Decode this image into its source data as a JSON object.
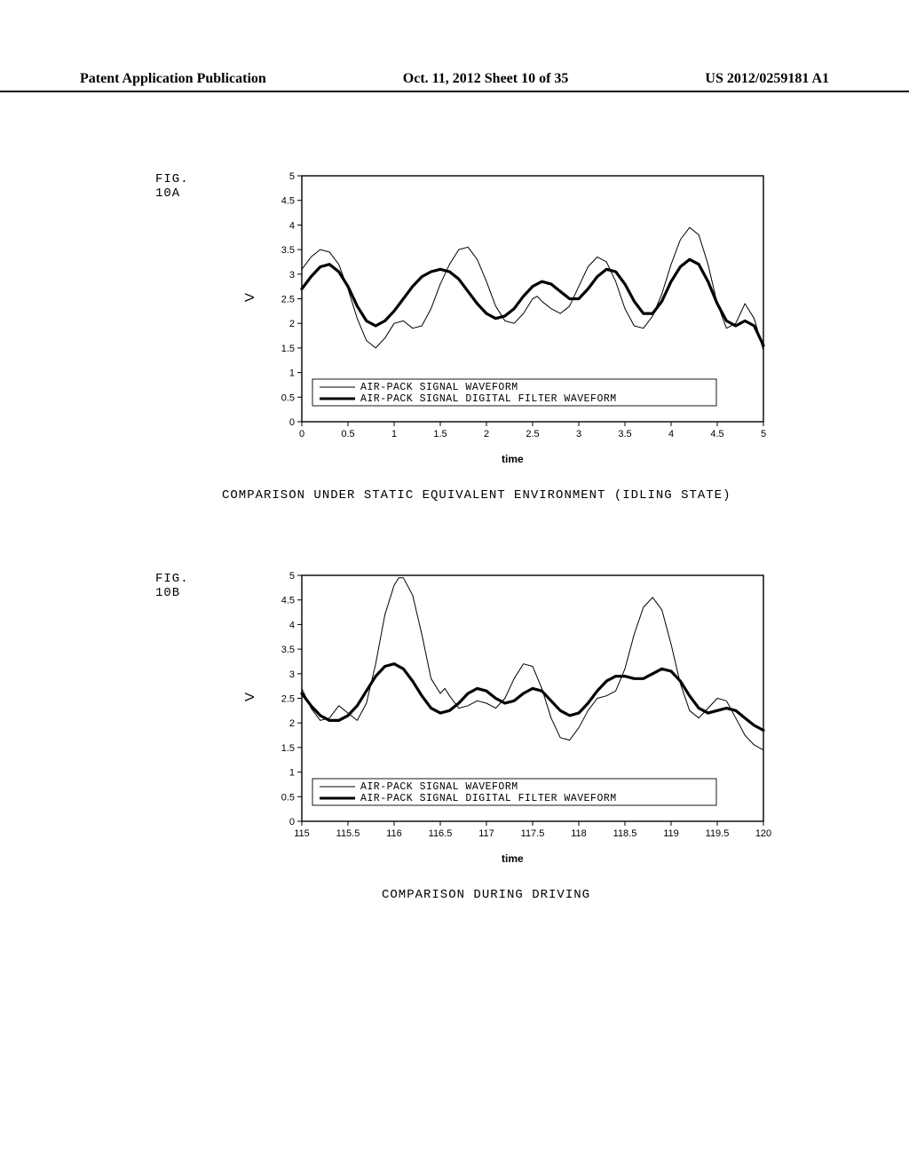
{
  "header": {
    "left": "Patent Application Publication",
    "center": "Oct. 11, 2012  Sheet 10 of 35",
    "right": "US 2012/0259181 A1"
  },
  "figA": {
    "label": "FIG. 10A",
    "type": "line",
    "ylabel": "V",
    "xlabel": "time",
    "xlim": [
      0,
      5
    ],
    "ylim": [
      0,
      5
    ],
    "xticks": [
      0,
      0.5,
      1,
      1.5,
      2,
      2.5,
      3,
      3.5,
      4,
      4.5,
      5
    ],
    "yticks": [
      0,
      0.5,
      1,
      1.5,
      2,
      2.5,
      3,
      3.5,
      4,
      4.5,
      5
    ],
    "legend": [
      "AIR-PACK SIGNAL WAVEFORM",
      "AIR-PACK SIGNAL DIGITAL FILTER WAVEFORM"
    ],
    "legend_line_widths": [
      1,
      3
    ],
    "background_color": "#ffffff",
    "axis_color": "#000000",
    "tick_fontsize": 11,
    "line_color_thin": "#000000",
    "line_color_thick": "#000000",
    "line_width_thin": 1,
    "line_width_thick": 3.2,
    "thin_series": [
      [
        0.0,
        3.1
      ],
      [
        0.1,
        3.35
      ],
      [
        0.2,
        3.5
      ],
      [
        0.3,
        3.45
      ],
      [
        0.4,
        3.2
      ],
      [
        0.5,
        2.7
      ],
      [
        0.6,
        2.1
      ],
      [
        0.7,
        1.65
      ],
      [
        0.8,
        1.5
      ],
      [
        0.9,
        1.7
      ],
      [
        1.0,
        2.0
      ],
      [
        1.1,
        2.05
      ],
      [
        1.2,
        1.9
      ],
      [
        1.3,
        1.95
      ],
      [
        1.4,
        2.3
      ],
      [
        1.5,
        2.8
      ],
      [
        1.6,
        3.2
      ],
      [
        1.7,
        3.5
      ],
      [
        1.8,
        3.55
      ],
      [
        1.9,
        3.3
      ],
      [
        2.0,
        2.85
      ],
      [
        2.1,
        2.35
      ],
      [
        2.2,
        2.05
      ],
      [
        2.3,
        2.0
      ],
      [
        2.4,
        2.2
      ],
      [
        2.5,
        2.5
      ],
      [
        2.55,
        2.55
      ],
      [
        2.6,
        2.45
      ],
      [
        2.7,
        2.3
      ],
      [
        2.8,
        2.2
      ],
      [
        2.9,
        2.35
      ],
      [
        3.0,
        2.75
      ],
      [
        3.1,
        3.15
      ],
      [
        3.2,
        3.35
      ],
      [
        3.3,
        3.25
      ],
      [
        3.4,
        2.85
      ],
      [
        3.5,
        2.3
      ],
      [
        3.6,
        1.95
      ],
      [
        3.7,
        1.9
      ],
      [
        3.8,
        2.15
      ],
      [
        3.9,
        2.6
      ],
      [
        4.0,
        3.2
      ],
      [
        4.1,
        3.7
      ],
      [
        4.2,
        3.95
      ],
      [
        4.3,
        3.8
      ],
      [
        4.4,
        3.2
      ],
      [
        4.5,
        2.4
      ],
      [
        4.6,
        1.9
      ],
      [
        4.7,
        2.0
      ],
      [
        4.8,
        2.4
      ],
      [
        4.9,
        2.1
      ],
      [
        5.0,
        1.45
      ]
    ],
    "thick_series": [
      [
        0.0,
        2.7
      ],
      [
        0.1,
        2.95
      ],
      [
        0.2,
        3.15
      ],
      [
        0.3,
        3.2
      ],
      [
        0.4,
        3.05
      ],
      [
        0.5,
        2.75
      ],
      [
        0.6,
        2.35
      ],
      [
        0.7,
        2.05
      ],
      [
        0.8,
        1.95
      ],
      [
        0.9,
        2.05
      ],
      [
        1.0,
        2.25
      ],
      [
        1.1,
        2.5
      ],
      [
        1.2,
        2.75
      ],
      [
        1.3,
        2.95
      ],
      [
        1.4,
        3.05
      ],
      [
        1.5,
        3.1
      ],
      [
        1.6,
        3.05
      ],
      [
        1.7,
        2.9
      ],
      [
        1.8,
        2.65
      ],
      [
        1.9,
        2.4
      ],
      [
        2.0,
        2.2
      ],
      [
        2.1,
        2.1
      ],
      [
        2.2,
        2.15
      ],
      [
        2.3,
        2.3
      ],
      [
        2.4,
        2.55
      ],
      [
        2.5,
        2.75
      ],
      [
        2.6,
        2.85
      ],
      [
        2.7,
        2.8
      ],
      [
        2.8,
        2.65
      ],
      [
        2.9,
        2.5
      ],
      [
        3.0,
        2.5
      ],
      [
        3.1,
        2.7
      ],
      [
        3.2,
        2.95
      ],
      [
        3.3,
        3.1
      ],
      [
        3.4,
        3.05
      ],
      [
        3.5,
        2.8
      ],
      [
        3.6,
        2.45
      ],
      [
        3.7,
        2.2
      ],
      [
        3.8,
        2.2
      ],
      [
        3.9,
        2.45
      ],
      [
        4.0,
        2.85
      ],
      [
        4.1,
        3.15
      ],
      [
        4.2,
        3.3
      ],
      [
        4.3,
        3.2
      ],
      [
        4.4,
        2.85
      ],
      [
        4.5,
        2.4
      ],
      [
        4.6,
        2.05
      ],
      [
        4.7,
        1.95
      ],
      [
        4.8,
        2.05
      ],
      [
        4.9,
        1.95
      ],
      [
        5.0,
        1.55
      ]
    ],
    "caption": "COMPARISON UNDER STATIC EQUIVALENT ENVIRONMENT (IDLING STATE)"
  },
  "figB": {
    "label": "FIG. 10B",
    "type": "line",
    "ylabel": "V",
    "xlabel": "time",
    "xlim": [
      115,
      120
    ],
    "ylim": [
      0,
      5
    ],
    "xticks": [
      115,
      115.5,
      116,
      116.5,
      117,
      117.5,
      118,
      118.5,
      119,
      119.5,
      120
    ],
    "yticks": [
      0,
      0.5,
      1,
      1.5,
      2,
      2.5,
      3,
      3.5,
      4,
      4.5,
      5
    ],
    "legend": [
      "AIR-PACK SIGNAL WAVEFORM",
      "AIR-PACK SIGNAL DIGITAL FILTER WAVEFORM"
    ],
    "legend_line_widths": [
      1,
      3
    ],
    "background_color": "#ffffff",
    "axis_color": "#000000",
    "tick_fontsize": 11,
    "line_color_thin": "#000000",
    "line_color_thick": "#000000",
    "line_width_thin": 1,
    "line_width_thick": 3.2,
    "thin_series": [
      [
        115.0,
        2.7
      ],
      [
        115.1,
        2.3
      ],
      [
        115.2,
        2.05
      ],
      [
        115.3,
        2.1
      ],
      [
        115.4,
        2.35
      ],
      [
        115.5,
        2.2
      ],
      [
        115.6,
        2.05
      ],
      [
        115.7,
        2.4
      ],
      [
        115.8,
        3.2
      ],
      [
        115.9,
        4.2
      ],
      [
        116.0,
        4.8
      ],
      [
        116.05,
        4.95
      ],
      [
        116.1,
        4.95
      ],
      [
        116.2,
        4.6
      ],
      [
        116.3,
        3.8
      ],
      [
        116.4,
        2.9
      ],
      [
        116.5,
        2.6
      ],
      [
        116.55,
        2.7
      ],
      [
        116.6,
        2.55
      ],
      [
        116.7,
        2.3
      ],
      [
        116.8,
        2.35
      ],
      [
        116.9,
        2.45
      ],
      [
        117.0,
        2.4
      ],
      [
        117.1,
        2.3
      ],
      [
        117.2,
        2.5
      ],
      [
        117.3,
        2.9
      ],
      [
        117.4,
        3.2
      ],
      [
        117.5,
        3.15
      ],
      [
        117.6,
        2.7
      ],
      [
        117.7,
        2.1
      ],
      [
        117.8,
        1.7
      ],
      [
        117.9,
        1.65
      ],
      [
        118.0,
        1.9
      ],
      [
        118.1,
        2.25
      ],
      [
        118.2,
        2.5
      ],
      [
        118.3,
        2.55
      ],
      [
        118.4,
        2.65
      ],
      [
        118.5,
        3.1
      ],
      [
        118.6,
        3.8
      ],
      [
        118.7,
        4.35
      ],
      [
        118.8,
        4.55
      ],
      [
        118.9,
        4.3
      ],
      [
        119.0,
        3.6
      ],
      [
        119.1,
        2.8
      ],
      [
        119.2,
        2.25
      ],
      [
        119.3,
        2.1
      ],
      [
        119.4,
        2.3
      ],
      [
        119.5,
        2.5
      ],
      [
        119.6,
        2.45
      ],
      [
        119.7,
        2.1
      ],
      [
        119.8,
        1.75
      ],
      [
        119.9,
        1.55
      ],
      [
        120.0,
        1.45
      ]
    ],
    "thick_series": [
      [
        115.0,
        2.6
      ],
      [
        115.1,
        2.35
      ],
      [
        115.2,
        2.15
      ],
      [
        115.3,
        2.05
      ],
      [
        115.4,
        2.05
      ],
      [
        115.5,
        2.15
      ],
      [
        115.6,
        2.35
      ],
      [
        115.7,
        2.65
      ],
      [
        115.8,
        2.95
      ],
      [
        115.9,
        3.15
      ],
      [
        116.0,
        3.2
      ],
      [
        116.1,
        3.1
      ],
      [
        116.2,
        2.85
      ],
      [
        116.3,
        2.55
      ],
      [
        116.4,
        2.3
      ],
      [
        116.5,
        2.2
      ],
      [
        116.6,
        2.25
      ],
      [
        116.7,
        2.4
      ],
      [
        116.8,
        2.6
      ],
      [
        116.9,
        2.7
      ],
      [
        117.0,
        2.65
      ],
      [
        117.1,
        2.5
      ],
      [
        117.2,
        2.4
      ],
      [
        117.3,
        2.45
      ],
      [
        117.4,
        2.6
      ],
      [
        117.5,
        2.7
      ],
      [
        117.6,
        2.65
      ],
      [
        117.7,
        2.45
      ],
      [
        117.8,
        2.25
      ],
      [
        117.9,
        2.15
      ],
      [
        118.0,
        2.2
      ],
      [
        118.1,
        2.4
      ],
      [
        118.2,
        2.65
      ],
      [
        118.3,
        2.85
      ],
      [
        118.4,
        2.95
      ],
      [
        118.5,
        2.95
      ],
      [
        118.6,
        2.9
      ],
      [
        118.7,
        2.9
      ],
      [
        118.8,
        3.0
      ],
      [
        118.9,
        3.1
      ],
      [
        119.0,
        3.05
      ],
      [
        119.1,
        2.85
      ],
      [
        119.2,
        2.55
      ],
      [
        119.3,
        2.3
      ],
      [
        119.4,
        2.2
      ],
      [
        119.5,
        2.25
      ],
      [
        119.6,
        2.3
      ],
      [
        119.7,
        2.25
      ],
      [
        119.8,
        2.1
      ],
      [
        119.9,
        1.95
      ],
      [
        120.0,
        1.85
      ]
    ],
    "caption": "COMPARISON DURING DRIVING"
  }
}
